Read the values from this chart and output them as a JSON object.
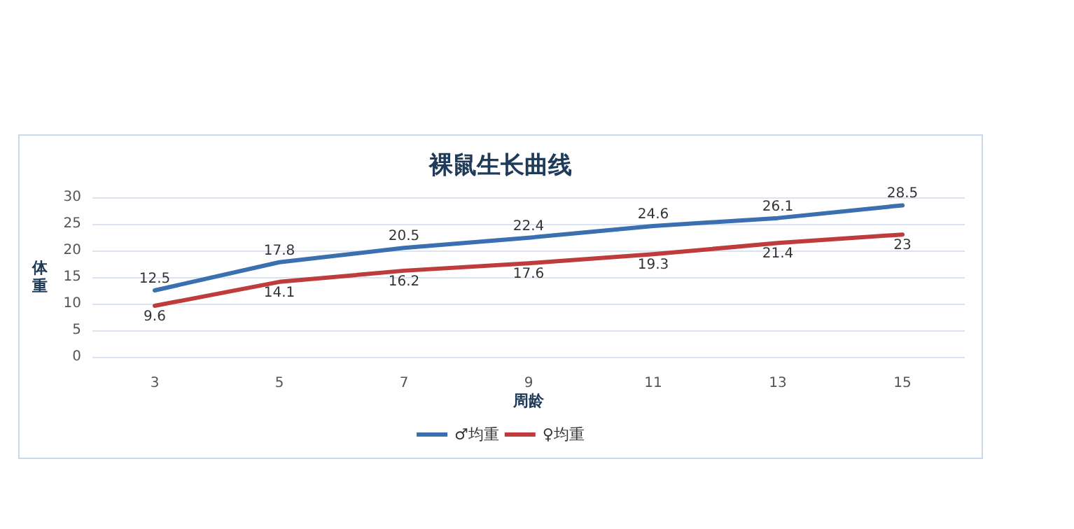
{
  "chart_data": {
    "type": "line",
    "title": "裸鼠生长曲线",
    "xlabel": "周龄",
    "ylabel": "体重",
    "categories": [
      "3",
      "5",
      "7",
      "9",
      "11",
      "13",
      "15"
    ],
    "series": [
      {
        "name": "♂均重",
        "color": "#3a6fb0",
        "values": [
          12.5,
          17.8,
          20.5,
          22.4,
          24.6,
          26.1,
          28.5
        ]
      },
      {
        "name": "♀均重",
        "color": "#be3c3c",
        "values": [
          9.6,
          14.1,
          16.2,
          17.6,
          19.3,
          21.4,
          23
        ]
      }
    ],
    "ylim": [
      0,
      30
    ],
    "yticks": [
      0,
      5,
      10,
      15,
      20,
      25,
      30
    ],
    "grid": "y",
    "legend": "bottom",
    "marker": "none",
    "line_style": "solid",
    "data_labels": true
  }
}
